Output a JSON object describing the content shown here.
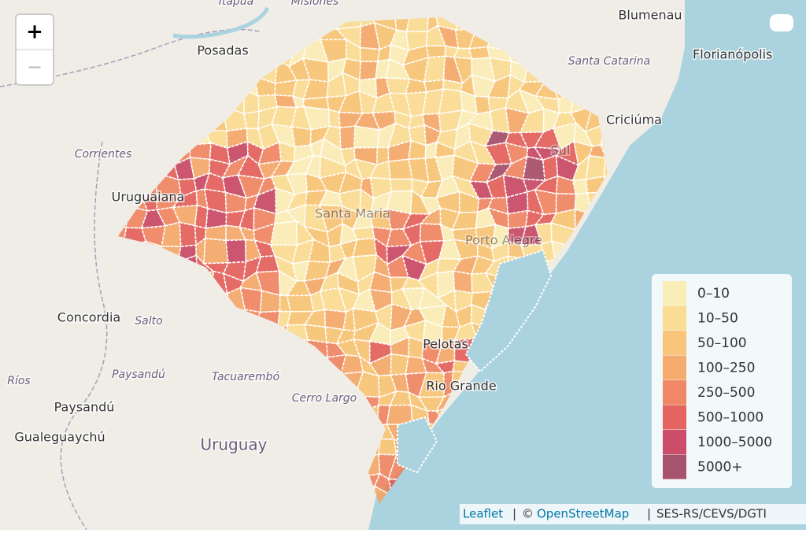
{
  "zoom": {
    "in": "+",
    "out": "−"
  },
  "places": [
    "Itapuã",
    "Misiones",
    "Blumenau",
    "Santa Catarina",
    "Florianópolis",
    "Criciúma",
    "Posadas",
    "Corrientes",
    "Uruguaiana",
    "Santa Maria",
    "Sul",
    "Porto Alegre",
    "Concordia",
    "Salto",
    "Paysandú",
    "Tacuarembó",
    "Cerro Largo",
    "Ríos",
    "Paysandú",
    "Gualeguaychú",
    "Uruguay",
    "Pelotas",
    "Rio Grande"
  ],
  "legend": [
    {
      "label": "0–10",
      "color": "#fbecb0"
    },
    {
      "label": "10–50",
      "color": "#fbd98a"
    },
    {
      "label": "50–100",
      "color": "#f9bf6b"
    },
    {
      "label": "100–250",
      "color": "#f5a15e"
    },
    {
      "label": "250–500",
      "color": "#f07b57"
    },
    {
      "label": "500–1000",
      "color": "#e2534f"
    },
    {
      "label": "1000–5000",
      "color": "#c63a5a"
    },
    {
      "label": "5000+",
      "color": "#a0405e"
    }
  ],
  "attribution": {
    "leaflet": "Leaflet",
    "separator": "|",
    "copyright": "©",
    "osm": "OpenStreetMap",
    "source": "SES-RS/CEVS/DGTI"
  }
}
